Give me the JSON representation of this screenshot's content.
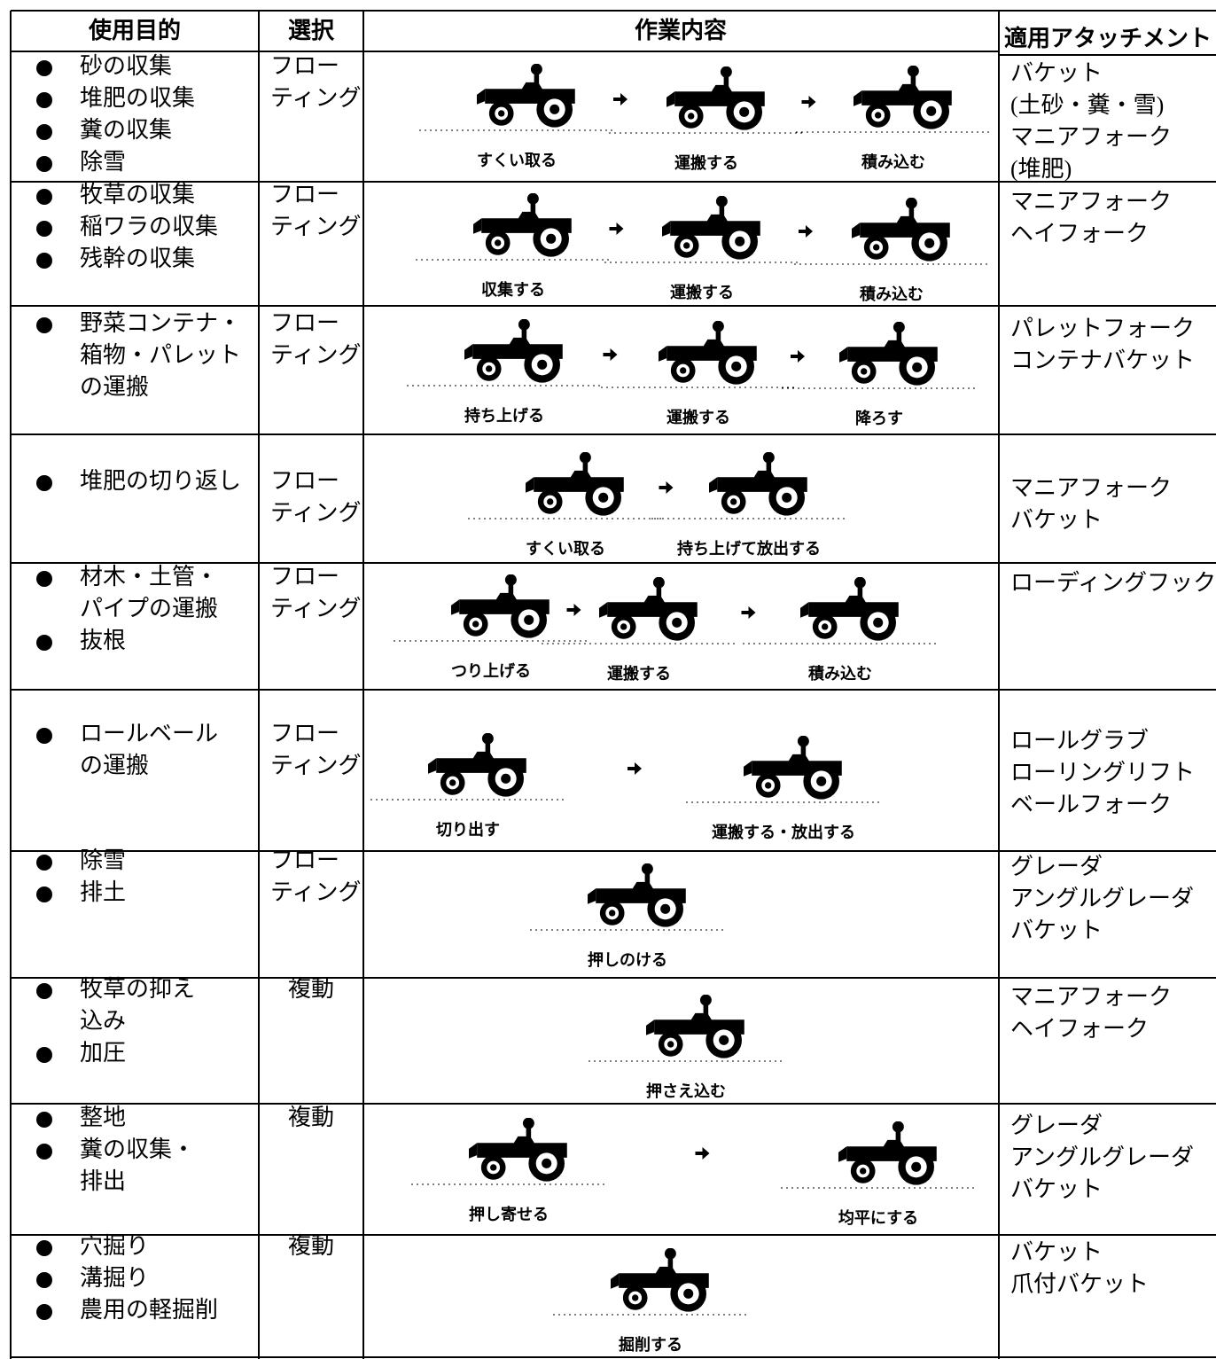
{
  "header": [
    "使用目的",
    "選択",
    "作業内容",
    "適用アタッチメント"
  ],
  "rows": [
    {
      "purposes": [
        [
          "砂の収集"
        ],
        [
          "堆肥の収集"
        ],
        [
          "糞の収集"
        ],
        [
          "除雪"
        ]
      ],
      "selection": [
        "フロー",
        "ティング"
      ],
      "steps": [
        "すくい取る",
        "運搬する",
        "積み込む"
      ],
      "attachments": [
        "バケット",
        "(土砂・糞・雪)",
        "マニアフォーク",
        "(堆肥)"
      ]
    },
    {
      "purposes": [
        [
          "牧草の収集"
        ],
        [
          "稲ワラの収集"
        ],
        [
          "残幹の収集"
        ]
      ],
      "selection": [
        "フロー",
        "ティング"
      ],
      "steps": [
        "収集する",
        "運搬する",
        "積み込む"
      ],
      "attachments": [
        "マニアフォーク",
        "ヘイフォーク"
      ]
    },
    {
      "purposes": [
        [
          "野菜コンテナ・",
          "箱物・パレット",
          "の運搬"
        ]
      ],
      "selection": [
        "フロー",
        "ティング"
      ],
      "steps": [
        "持ち上げる",
        "運搬する",
        "降ろす"
      ],
      "attachments": [
        "パレットフォーク",
        "コンテナバケット"
      ]
    },
    {
      "purposes": [
        [
          "堆肥の切り返し"
        ]
      ],
      "selection": [
        "フロー",
        "ティング"
      ],
      "steps": [
        "すくい取る",
        "持ち上げて放出する"
      ],
      "attachments": [
        "マニアフォーク",
        "バケット"
      ]
    },
    {
      "purposes": [
        [
          "材木・土管・",
          "パイプの運搬"
        ],
        [
          "抜根"
        ]
      ],
      "selection": [
        "フロー",
        "ティング"
      ],
      "steps": [
        "つり上げる",
        "運搬する",
        "積み込む"
      ],
      "attachments": [
        "ローディングフック"
      ]
    },
    {
      "purposes": [
        [
          "ロールベール",
          "の運搬"
        ]
      ],
      "selection": [
        "フロー",
        "ティング"
      ],
      "steps": [
        "切り出す",
        "運搬する・放出する"
      ],
      "attachments": [
        "ロールグラブ",
        "ローリングリフト",
        "ベールフォーク"
      ]
    },
    {
      "purposes": [
        [
          "除雪"
        ],
        [
          "排土"
        ]
      ],
      "selection": [
        "フロー",
        "ティング"
      ],
      "steps": [
        "押しのける"
      ],
      "attachments": [
        "グレーダ",
        "アングルグレーダ",
        "バケット"
      ]
    },
    {
      "purposes": [
        [
          "牧草の抑え",
          "込み"
        ],
        [
          "加圧"
        ]
      ],
      "selection": [
        "複動"
      ],
      "steps": [
        "押さえ込む"
      ],
      "attachments": [
        "マニアフォーク",
        "ヘイフォーク"
      ]
    },
    {
      "purposes": [
        [
          "整地"
        ],
        [
          "糞の収集・",
          "排出"
        ]
      ],
      "selection": [
        "複動"
      ],
      "steps": [
        "押し寄せる",
        "均平にする"
      ],
      "attachments": [
        "グレーダ",
        "アングルグレーダ",
        "バケット"
      ]
    },
    {
      "purposes": [
        [
          "穴掘り"
        ],
        [
          "溝掘り"
        ],
        [
          "農用の軽掘削"
        ]
      ],
      "selection": [
        "複動"
      ],
      "steps": [
        "掘削する"
      ],
      "attachments": [
        "バケット",
        "爪付バケット"
      ]
    }
  ]
}
